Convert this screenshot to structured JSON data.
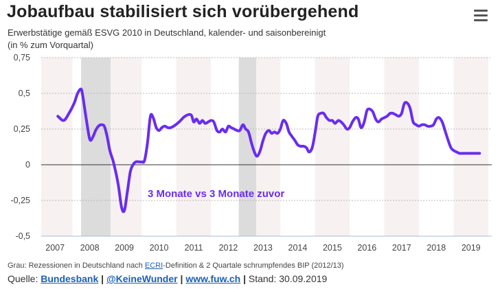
{
  "header": {
    "title": "Jobaufbau stabilisiert sich vorübergehend",
    "subtitle_line1": "Erwerbstätige gemäß ESVG 2010 in Deutschland, kalender- und saisonbereinigt",
    "subtitle_line2": "(in % zum Vorquartal)"
  },
  "footer": {
    "footnote_prefix": "Grau: Rezessionen in Deutschland nach ",
    "footnote_link": "ECRI",
    "footnote_suffix": "-Definition & 2 Quartale schrumpfendes BIP (2012/13)",
    "source_label": "Quelle: ",
    "source_link1": "Bundesbank",
    "source_link2": "@KeineWunder",
    "source_link3": "www.fuw.ch",
    "separator": "|",
    "stand": "Stand: 30.09.2019"
  },
  "colors": {
    "line": "#6a2cf0",
    "recession": "#dcdcdc",
    "band": "#f7f1f1",
    "grid": "#b8b8b8",
    "zero": "#333333"
  },
  "chart_data": {
    "type": "line",
    "title": "Jobaufbau stabilisiert sich vorübergehend",
    "xlabel": "",
    "ylabel": "in % zum Vorquartal",
    "xlim": [
      2006.6,
      2019.6
    ],
    "ylim": [
      -0.5,
      0.75
    ],
    "yticks": [
      0.75,
      0.5,
      0.25,
      0,
      -0.25,
      -0.5
    ],
    "ytick_labels": [
      "0,75",
      "0,5",
      "0,25",
      "0",
      "-0,25",
      "-0,5"
    ],
    "xticks": [
      2007,
      2008,
      2009,
      2010,
      2011,
      2012,
      2013,
      2014,
      2015,
      2016,
      2017,
      2018,
      2019
    ],
    "xtick_labels": [
      "2007",
      "2008",
      "2009",
      "2010",
      "2011",
      "2012",
      "2013",
      "2014",
      "2015",
      "2016",
      "2017",
      "2018",
      "2019"
    ],
    "recessions": [
      [
        2007.75,
        2008.6
      ],
      [
        2012.3,
        2012.8
      ]
    ],
    "annotation": "3 Monate vs 3 Monate zuvor",
    "series": [
      {
        "name": "3 Monate vs 3 Monate zuvor",
        "x": [
          2007.08,
          2007.25,
          2007.4,
          2007.55,
          2007.65,
          2007.75,
          2007.8,
          2007.9,
          2008.0,
          2008.08,
          2008.17,
          2008.25,
          2008.33,
          2008.42,
          2008.5,
          2008.58,
          2008.67,
          2008.75,
          2008.83,
          2008.92,
          2009.0,
          2009.08,
          2009.17,
          2009.25,
          2009.33,
          2009.42,
          2009.5,
          2009.58,
          2009.67,
          2009.75,
          2009.83,
          2009.92,
          2010.0,
          2010.08,
          2010.17,
          2010.25,
          2010.33,
          2010.42,
          2010.58,
          2010.75,
          2010.92,
          2011.0,
          2011.08,
          2011.17,
          2011.25,
          2011.33,
          2011.42,
          2011.5,
          2011.58,
          2011.67,
          2011.75,
          2011.83,
          2011.92,
          2012.0,
          2012.08,
          2012.17,
          2012.25,
          2012.33,
          2012.42,
          2012.5,
          2012.58,
          2012.67,
          2012.75,
          2012.83,
          2012.92,
          2013.0,
          2013.08,
          2013.17,
          2013.25,
          2013.33,
          2013.42,
          2013.5,
          2013.58,
          2013.67,
          2013.75,
          2013.83,
          2013.92,
          2014.0,
          2014.08,
          2014.17,
          2014.25,
          2014.33,
          2014.42,
          2014.5,
          2014.58,
          2014.67,
          2014.75,
          2014.83,
          2014.92,
          2015.0,
          2015.08,
          2015.17,
          2015.25,
          2015.33,
          2015.42,
          2015.5,
          2015.58,
          2015.67,
          2015.75,
          2015.83,
          2015.92,
          2016.0,
          2016.08,
          2016.17,
          2016.25,
          2016.33,
          2016.42,
          2016.5,
          2016.58,
          2016.67,
          2016.75,
          2016.83,
          2016.92,
          2017.0,
          2017.08,
          2017.17,
          2017.25,
          2017.33,
          2017.42,
          2017.5,
          2017.58,
          2017.67,
          2017.75,
          2017.83,
          2017.92,
          2018.0,
          2018.08,
          2018.17,
          2018.25,
          2018.33,
          2018.42,
          2018.5,
          2018.58,
          2018.67,
          2018.75,
          2018.83,
          2018.92,
          2019.0,
          2019.08,
          2019.17,
          2019.25
        ],
        "values": [
          0.34,
          0.31,
          0.36,
          0.43,
          0.5,
          0.53,
          0.48,
          0.32,
          0.18,
          0.19,
          0.24,
          0.27,
          0.28,
          0.27,
          0.2,
          0.1,
          0.03,
          -0.05,
          -0.15,
          -0.3,
          -0.32,
          -0.2,
          -0.05,
          0.0,
          0.02,
          0.02,
          0.02,
          0.03,
          0.16,
          0.34,
          0.33,
          0.26,
          0.24,
          0.26,
          0.27,
          0.26,
          0.26,
          0.27,
          0.3,
          0.34,
          0.35,
          0.3,
          0.32,
          0.29,
          0.31,
          0.29,
          0.3,
          0.31,
          0.3,
          0.24,
          0.23,
          0.25,
          0.23,
          0.27,
          0.26,
          0.25,
          0.24,
          0.24,
          0.28,
          0.25,
          0.23,
          0.15,
          0.09,
          0.06,
          0.1,
          0.17,
          0.22,
          0.24,
          0.22,
          0.23,
          0.22,
          0.25,
          0.31,
          0.29,
          0.23,
          0.2,
          0.17,
          0.14,
          0.13,
          0.13,
          0.12,
          0.09,
          0.12,
          0.22,
          0.34,
          0.36,
          0.36,
          0.33,
          0.31,
          0.31,
          0.29,
          0.31,
          0.3,
          0.28,
          0.25,
          0.26,
          0.3,
          0.33,
          0.32,
          0.26,
          0.3,
          0.38,
          0.39,
          0.37,
          0.32,
          0.3,
          0.32,
          0.33,
          0.34,
          0.36,
          0.36,
          0.35,
          0.34,
          0.36,
          0.43,
          0.43,
          0.39,
          0.3,
          0.28,
          0.27,
          0.28,
          0.28,
          0.27,
          0.27,
          0.28,
          0.32,
          0.33,
          0.3,
          0.24,
          0.18,
          0.12,
          0.1,
          0.09,
          0.08,
          0.08,
          0.08,
          0.08,
          0.08,
          0.08,
          0.08,
          0.08
        ]
      }
    ]
  }
}
